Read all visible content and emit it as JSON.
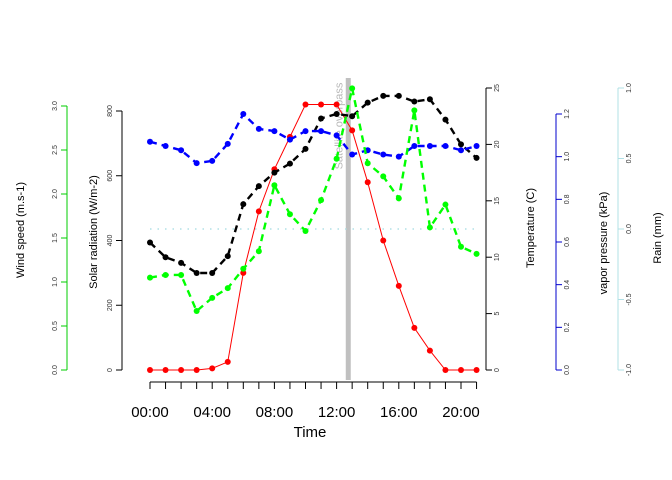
{
  "chart_data": {
    "type": "line",
    "title": "",
    "xlabel": "Time",
    "x_hours": [
      0,
      1,
      2,
      3,
      4,
      5,
      6,
      7,
      8,
      9,
      10,
      11,
      12,
      13,
      14,
      15,
      16,
      17,
      18,
      19,
      20,
      21
    ],
    "x_ticks": [
      "00:00",
      "04:00",
      "08:00",
      "12:00",
      "16:00",
      "20:00"
    ],
    "x_tick_hours": [
      0,
      4,
      8,
      12,
      16,
      20
    ],
    "annotation": {
      "text": "Satellite overpass",
      "hour": 12.75,
      "color": "#c0c0c0"
    },
    "rain_line": {
      "value": 0.0,
      "color": "#b0e0e6"
    },
    "axes": [
      {
        "key": "wind",
        "label": "Wind speed (m.s-1)",
        "min": 0,
        "max": 3.0,
        "ticks": [
          "0.0",
          "0.5",
          "1.0",
          "1.5",
          "2.0",
          "2.5",
          "3.0"
        ],
        "color": "#00cc00",
        "side": "left"
      },
      {
        "key": "solar",
        "label": "Solar radiation (W/m-2)",
        "min": 0,
        "max": 800,
        "ticks": [
          "0",
          "200",
          "400",
          "600",
          "800"
        ],
        "color": "#000000",
        "side": "left"
      },
      {
        "key": "temp",
        "label": "Temperature (C)",
        "min": 0,
        "max": 25,
        "ticks": [
          "0",
          "5",
          "10",
          "15",
          "20",
          "25"
        ],
        "color": "#000000",
        "side": "right"
      },
      {
        "key": "vapor",
        "label": "vapor pressure (kPa)",
        "min": 0,
        "max": 1.2,
        "ticks": [
          "0.0",
          "0.2",
          "0.4",
          "0.6",
          "0.8",
          "1.0",
          "1.2"
        ],
        "color": "#0000cc",
        "side": "right"
      },
      {
        "key": "rain",
        "label": "Rain (mm)",
        "min": -1.0,
        "max": 1.0,
        "ticks": [
          "-1.0",
          "-0.5",
          "0.0",
          "0.5",
          "1.0"
        ],
        "color": "#b0e0e6",
        "side": "right"
      }
    ],
    "series": [
      {
        "key": "solar",
        "axis": "solar",
        "color": "#ff0000",
        "style": "solid",
        "values": [
          0,
          0,
          0,
          0,
          5,
          25,
          300,
          490,
          620,
          720,
          820,
          820,
          820,
          740,
          580,
          400,
          260,
          130,
          60,
          0,
          0,
          0
        ]
      },
      {
        "key": "temp",
        "axis": "temp",
        "color": "#000000",
        "style": "dashed",
        "values": [
          11.3,
          10.0,
          9.5,
          8.6,
          8.6,
          10.1,
          14.7,
          16.3,
          17.5,
          18.3,
          19.6,
          22.3,
          22.7,
          22.5,
          23.7,
          24.3,
          24.3,
          23.8,
          24.0,
          22.2,
          20.0,
          18.8
        ]
      },
      {
        "key": "vapor",
        "axis": "vapor",
        "color": "#0000ff",
        "style": "dashed",
        "values": [
          1.07,
          1.05,
          1.03,
          0.97,
          0.98,
          1.06,
          1.2,
          1.13,
          1.12,
          1.08,
          1.12,
          1.12,
          1.1,
          1.01,
          1.03,
          1.01,
          1.0,
          1.05,
          1.05,
          1.05,
          1.03,
          1.05
        ]
      },
      {
        "key": "wind",
        "axis": "wind",
        "color": "#00ff00",
        "style": "dashed",
        "values": [
          1.05,
          1.08,
          1.08,
          0.67,
          0.82,
          0.93,
          1.15,
          1.35,
          2.1,
          1.77,
          1.58,
          1.93,
          2.4,
          3.2,
          2.35,
          2.2,
          1.95,
          2.95,
          1.62,
          1.88,
          1.4,
          1.32
        ]
      }
    ]
  }
}
